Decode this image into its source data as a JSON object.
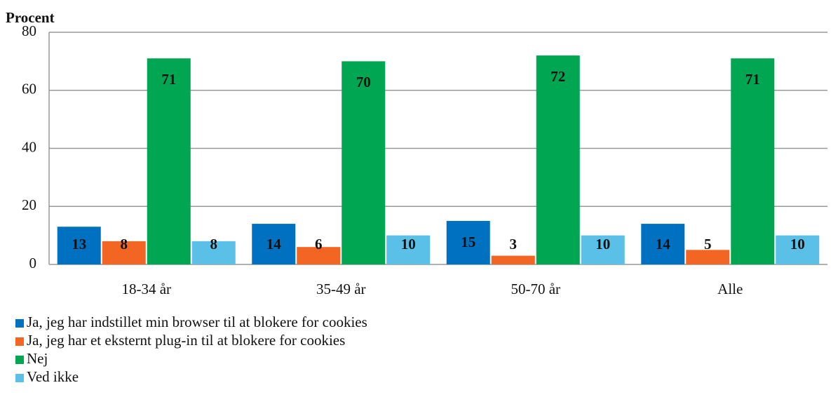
{
  "chart_data": {
    "type": "bar",
    "y_axis_label": "Procent",
    "categories": [
      "18-34 år",
      "35-49 år",
      "50-70 år",
      "Alle"
    ],
    "series": [
      {
        "name": "Ja, jeg har indstillet min browser til at blokere for cookies",
        "color": "#0070c0",
        "values": [
          13,
          14,
          15,
          14
        ]
      },
      {
        "name": "Ja, jeg har et eksternt plug-in til at blokere for cookies",
        "color": "#f26522",
        "values": [
          8,
          6,
          3,
          5
        ]
      },
      {
        "name": "Nej",
        "color": "#00a651",
        "values": [
          71,
          70,
          72,
          71
        ]
      },
      {
        "name": "Ved ikke",
        "color": "#5bc0e8",
        "values": [
          8,
          10,
          10,
          10
        ]
      }
    ],
    "ylim": [
      0,
      80
    ],
    "yticks": [
      0,
      20,
      40,
      60,
      80
    ],
    "grid": true,
    "legend": "bottom"
  }
}
